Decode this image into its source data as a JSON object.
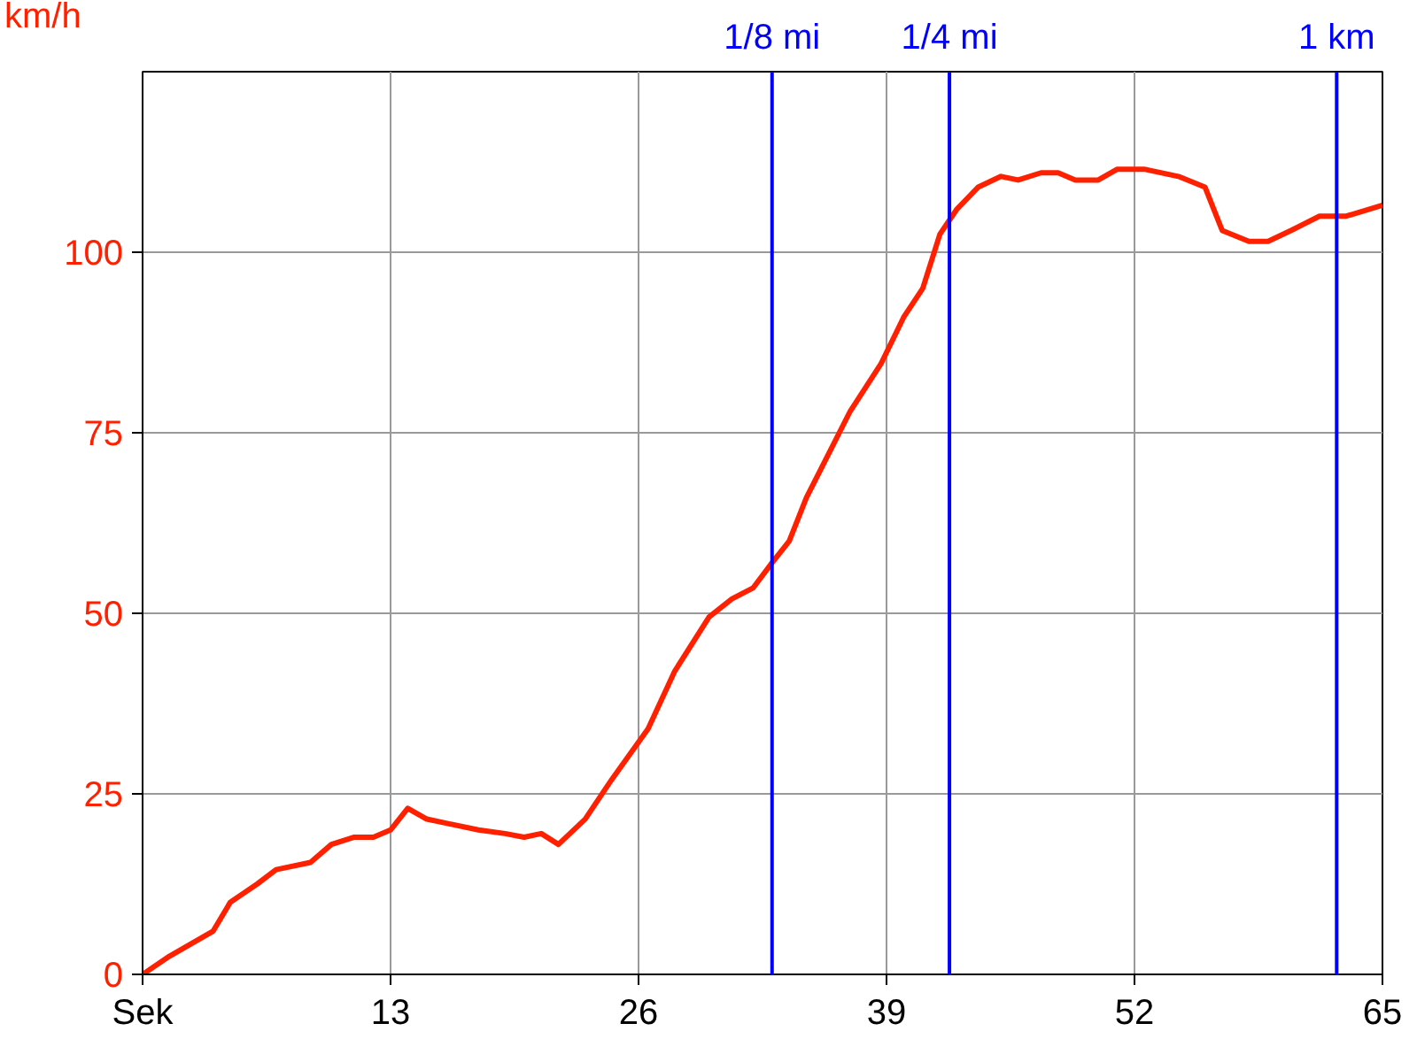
{
  "chart_data": {
    "type": "line",
    "ylabel": "km/h",
    "x": [
      0,
      1.4,
      3.7,
      4.6,
      6,
      7,
      8.8,
      9.9,
      11.1,
      12.1,
      13,
      13.9,
      14.9,
      15.8,
      17.6,
      19,
      20,
      20.9,
      21.8,
      23.2,
      24.6,
      26.5,
      27.9,
      29.7,
      30.9,
      32,
      33,
      33.9,
      34.8,
      37.1,
      38.7,
      39.9,
      40.9,
      41.8,
      42.7,
      43.8,
      45,
      45.9,
      47.1,
      48,
      48.9,
      50.1,
      51.1,
      52.5,
      54.3,
      55.7,
      56.6,
      58,
      59,
      60.2,
      61.7,
      63.1,
      65
    ],
    "series": [
      {
        "color": "#ff2000",
        "values": [
          0,
          2.5,
          6,
          10,
          12.5,
          14.5,
          15.5,
          18,
          19,
          19,
          20,
          23,
          21.5,
          21,
          20,
          19.5,
          19,
          19.5,
          18,
          21.5,
          27,
          34,
          42,
          49.5,
          52,
          53.5,
          57,
          60,
          66,
          78,
          84.5,
          91,
          95,
          102.5,
          106,
          109,
          110.5,
          110,
          111,
          111,
          110,
          110,
          111.5,
          111.5,
          110.5,
          109,
          103,
          101.5,
          101.5,
          103,
          105,
          105,
          106.5
        ]
      }
    ],
    "xlim": [
      0,
      65
    ],
    "xticks": [
      {
        "value": 0,
        "label": "Sek"
      },
      13,
      26,
      39,
      52,
      65
    ],
    "ylim": [
      0,
      125
    ],
    "yticks": [
      0,
      25,
      50,
      75,
      100
    ],
    "ref_lines": [
      {
        "axis": "x",
        "value": 33,
        "label": "1/8 mi",
        "color": "#0000ff"
      },
      {
        "axis": "x",
        "value": 42.3,
        "label": "1/4 mi",
        "color": "#0000ff"
      },
      {
        "axis": "x",
        "value": 62.6,
        "label": "1 km",
        "color": "#0000ff"
      }
    ],
    "grid": true,
    "marker": "none",
    "line_style": "solid"
  }
}
